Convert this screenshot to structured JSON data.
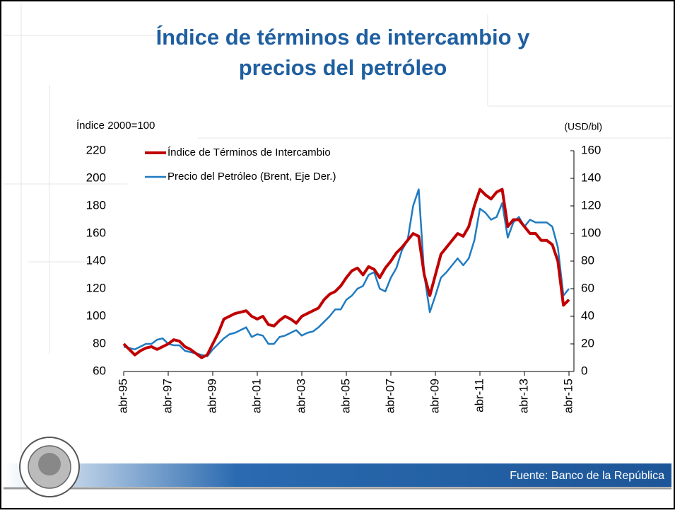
{
  "chart_data": {
    "type": "line",
    "title": "Índice de términos de intercambio y precios del petróleo",
    "title_lines": [
      "Índice de términos de intercambio y",
      "precios del petróleo"
    ],
    "ylabel": "Índice 2000=100",
    "y2label": "(USD/bl)",
    "source": "Fuente: Banco de la República",
    "x": [
      1995.25,
      1995.5,
      1995.75,
      1996,
      1996.25,
      1996.5,
      1996.75,
      1997,
      1997.25,
      1997.5,
      1997.75,
      1998,
      1998.25,
      1998.5,
      1998.75,
      1999,
      1999.25,
      1999.5,
      1999.75,
      2000,
      2000.25,
      2000.5,
      2000.75,
      2001,
      2001.25,
      2001.5,
      2001.75,
      2002,
      2002.25,
      2002.5,
      2002.75,
      2003,
      2003.25,
      2003.5,
      2003.75,
      2004,
      2004.25,
      2004.5,
      2004.75,
      2005,
      2005.25,
      2005.5,
      2005.75,
      2006,
      2006.25,
      2006.5,
      2006.75,
      2007,
      2007.25,
      2007.5,
      2007.75,
      2008,
      2008.25,
      2008.5,
      2008.75,
      2009,
      2009.25,
      2009.5,
      2009.75,
      2010,
      2010.25,
      2010.5,
      2010.75,
      2011,
      2011.25,
      2011.5,
      2011.75,
      2012,
      2012.25,
      2012.5,
      2012.75,
      2013,
      2013.25,
      2013.5,
      2013.75,
      2014,
      2014.25,
      2014.5,
      2014.75,
      2015,
      2015.25
    ],
    "series": [
      {
        "name": "Índice de Términos de Intercambio",
        "color": "#c00000",
        "width": 4,
        "values": [
          80,
          76,
          72,
          75,
          77,
          78,
          76,
          78,
          80,
          83,
          82,
          78,
          76,
          73,
          70,
          72,
          80,
          88,
          98,
          100,
          102,
          103,
          104,
          100,
          98,
          100,
          94,
          93,
          97,
          100,
          98,
          95,
          100,
          102,
          104,
          106,
          112,
          116,
          118,
          122,
          128,
          133,
          135,
          130,
          136,
          134,
          128,
          135,
          140,
          146,
          150,
          155,
          160,
          158,
          130,
          115,
          130,
          145,
          150,
          155,
          160,
          158,
          165,
          180,
          192,
          188,
          185,
          190,
          192,
          165,
          170,
          170,
          165,
          160,
          160,
          155,
          155,
          152,
          140,
          108,
          112
        ]
      },
      {
        "name": "Precio del Petróleo (Brent, Eje Der.)",
        "color": "#1f7bc1",
        "width": 2.5,
        "axis": "y2",
        "values": [
          18,
          17,
          16,
          18,
          20,
          20,
          23,
          24,
          20,
          19,
          19,
          15,
          14,
          13,
          12,
          11,
          16,
          20,
          24,
          27,
          28,
          30,
          32,
          25,
          27,
          26,
          20,
          20,
          25,
          26,
          28,
          30,
          26,
          28,
          29,
          32,
          36,
          40,
          45,
          45,
          52,
          55,
          60,
          62,
          70,
          72,
          60,
          58,
          68,
          75,
          88,
          95,
          120,
          132,
          70,
          43,
          55,
          68,
          72,
          77,
          82,
          77,
          82,
          95,
          118,
          115,
          110,
          112,
          122,
          97,
          108,
          112,
          105,
          110,
          108,
          108,
          108,
          105,
          90,
          55,
          60
        ]
      }
    ],
    "xlim": [
      1995.25,
      2015.25
    ],
    "xticks": [
      {
        "value": 1995.25,
        "label": "abr-95"
      },
      {
        "value": 1997.25,
        "label": "abr-97"
      },
      {
        "value": 1999.25,
        "label": "abr-99"
      },
      {
        "value": 2001.25,
        "label": "abr-01"
      },
      {
        "value": 2003.25,
        "label": "abr-03"
      },
      {
        "value": 2005.25,
        "label": "abr-05"
      },
      {
        "value": 2007.25,
        "label": "abr-07"
      },
      {
        "value": 2009.25,
        "label": "abr-09"
      },
      {
        "value": 2011.25,
        "label": "abr-11"
      },
      {
        "value": 2013.25,
        "label": "abr-13"
      },
      {
        "value": 2015.25,
        "label": "abr-15"
      }
    ],
    "ylim": [
      60,
      220
    ],
    "yticks": [
      60,
      80,
      100,
      120,
      140,
      160,
      180,
      200,
      220
    ],
    "y2lim": [
      0,
      160
    ],
    "y2ticks": [
      0,
      20,
      40,
      60,
      80,
      100,
      120,
      140,
      160
    ]
  }
}
